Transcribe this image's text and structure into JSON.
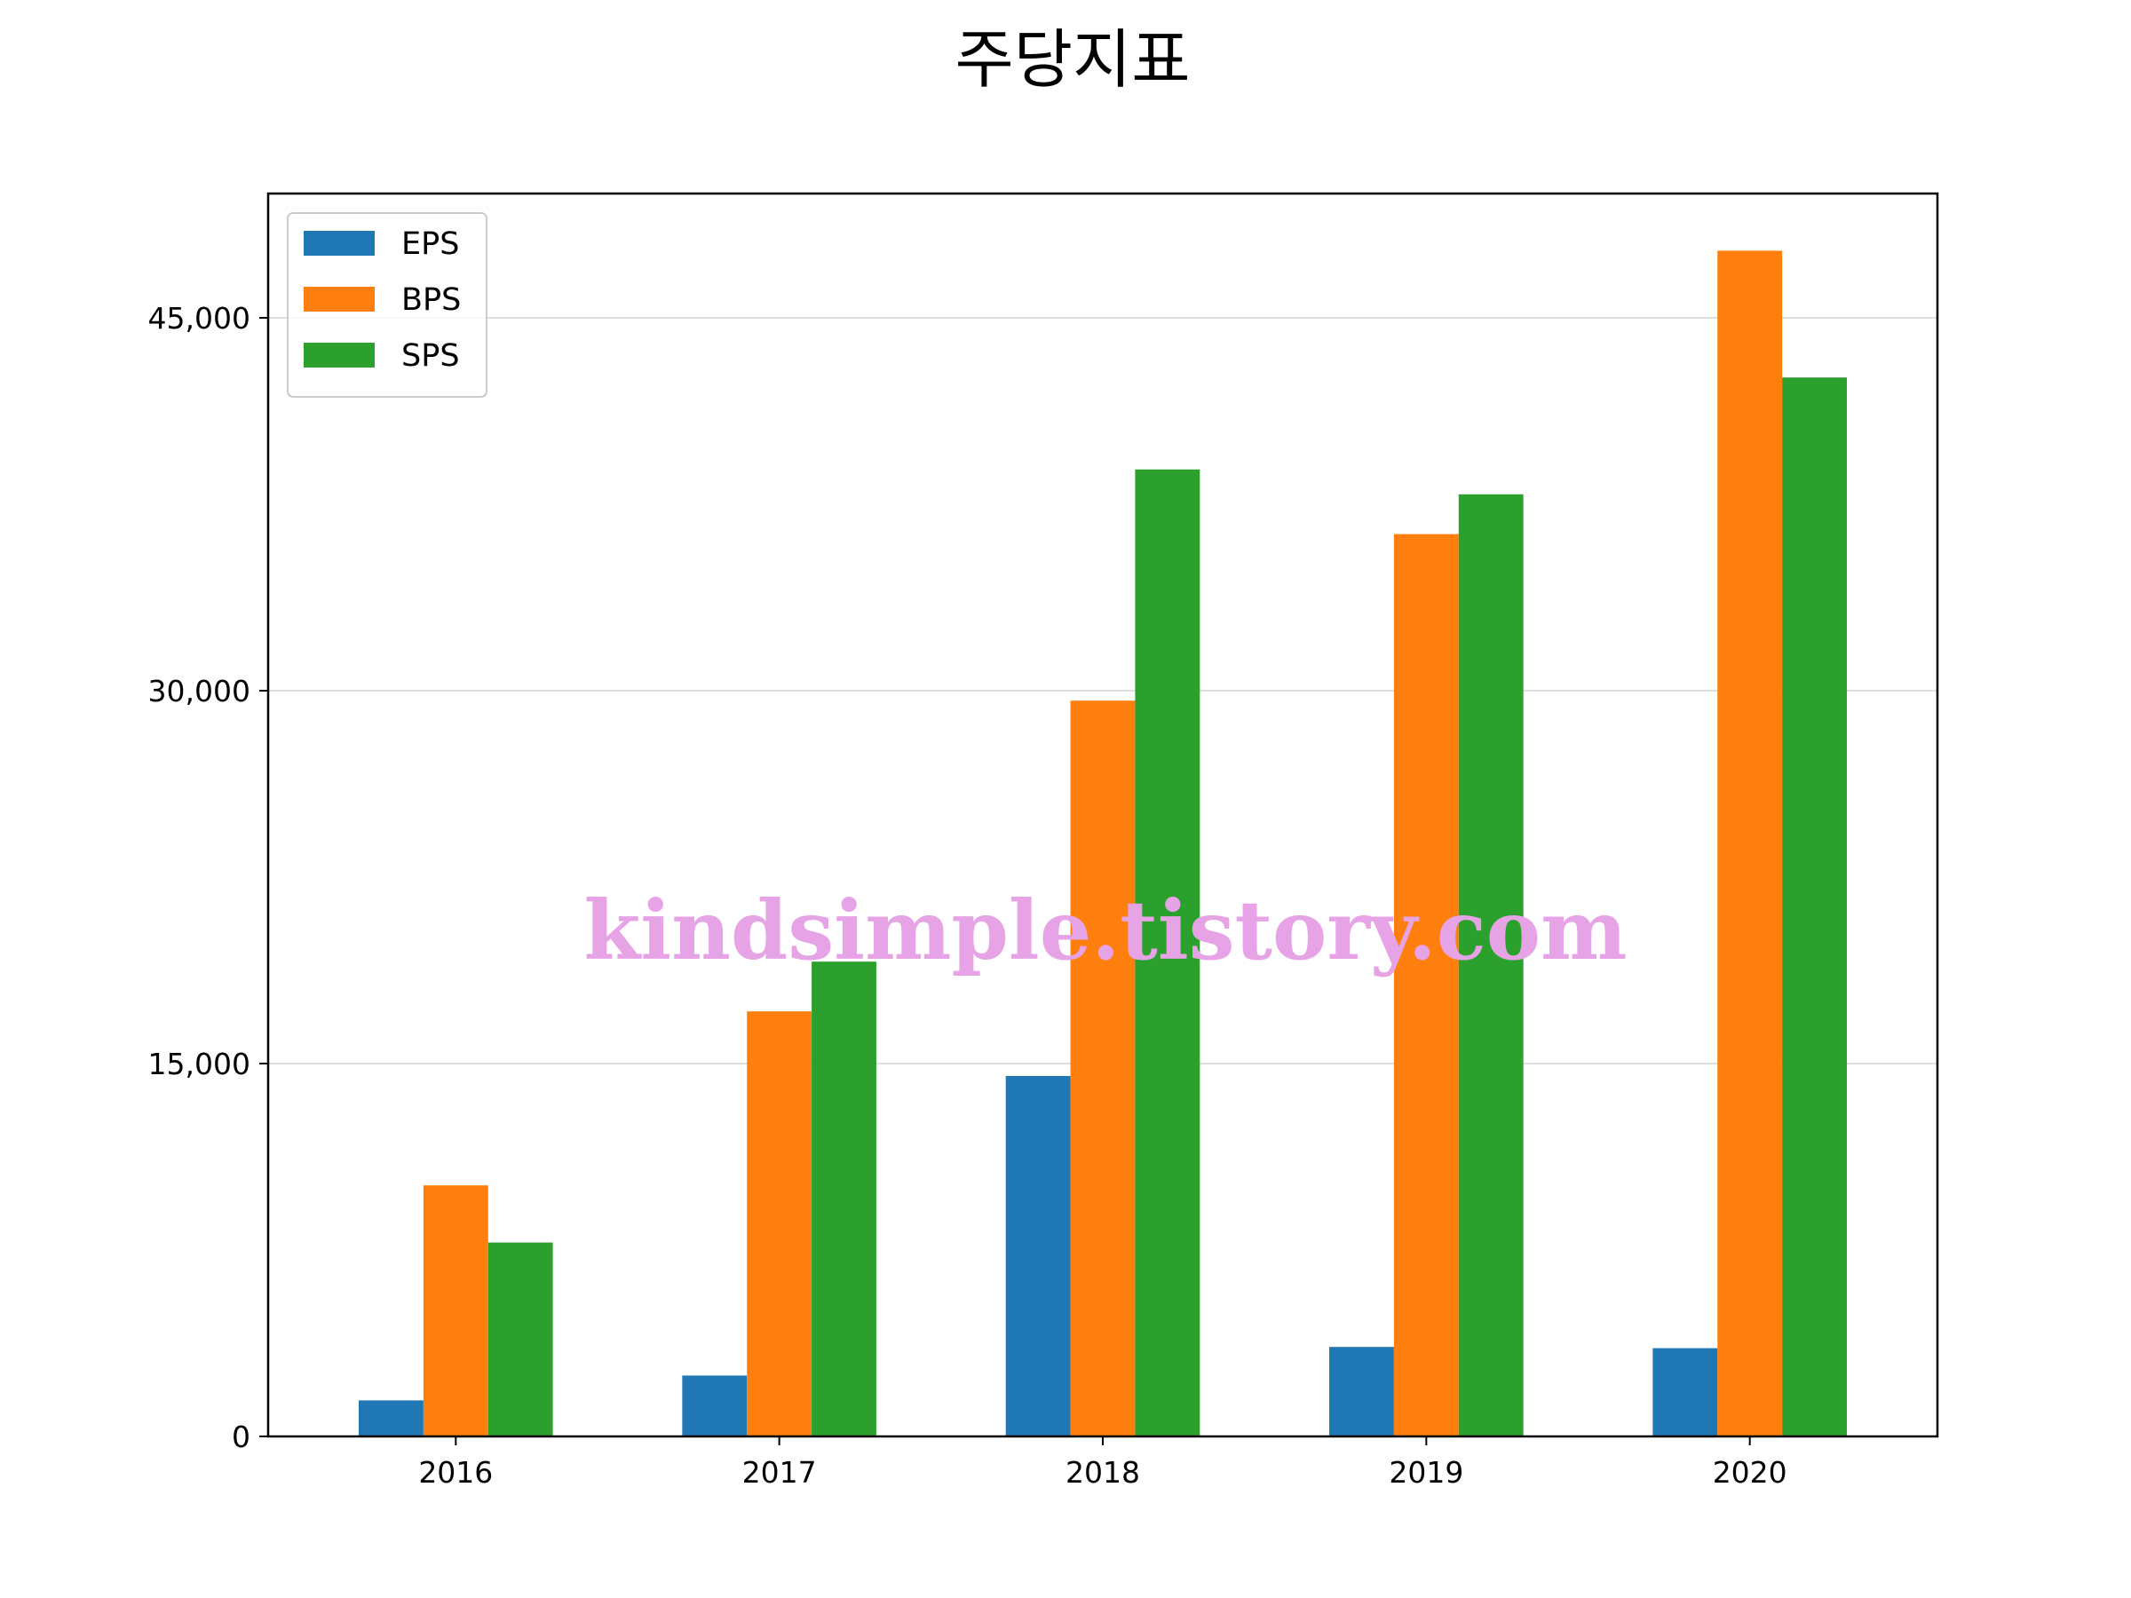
{
  "chart_data": {
    "type": "bar",
    "title": "주당지표",
    "xlabel": "",
    "ylabel": "",
    "categories": [
      "2016",
      "2017",
      "2018",
      "2019",
      "2020"
    ],
    "series": [
      {
        "name": "EPS",
        "color": "#1f77b4",
        "values": [
          1450,
          2450,
          14500,
          3600,
          3550
        ]
      },
      {
        "name": "BPS",
        "color": "#ff7f0e",
        "values": [
          10100,
          17100,
          29600,
          36300,
          47700
        ]
      },
      {
        "name": "SPS",
        "color": "#2ca02c",
        "values": [
          7800,
          19100,
          38900,
          37900,
          42600
        ]
      }
    ],
    "ylim": [
      0,
      50000
    ],
    "yticks": [
      0,
      15000,
      30000,
      45000
    ],
    "ytick_labels": [
      "0",
      "15,000",
      "30,000",
      "45,000"
    ],
    "grid": "horizontal",
    "legend": "top-left",
    "watermark": "kindsimple.tistory.com"
  }
}
